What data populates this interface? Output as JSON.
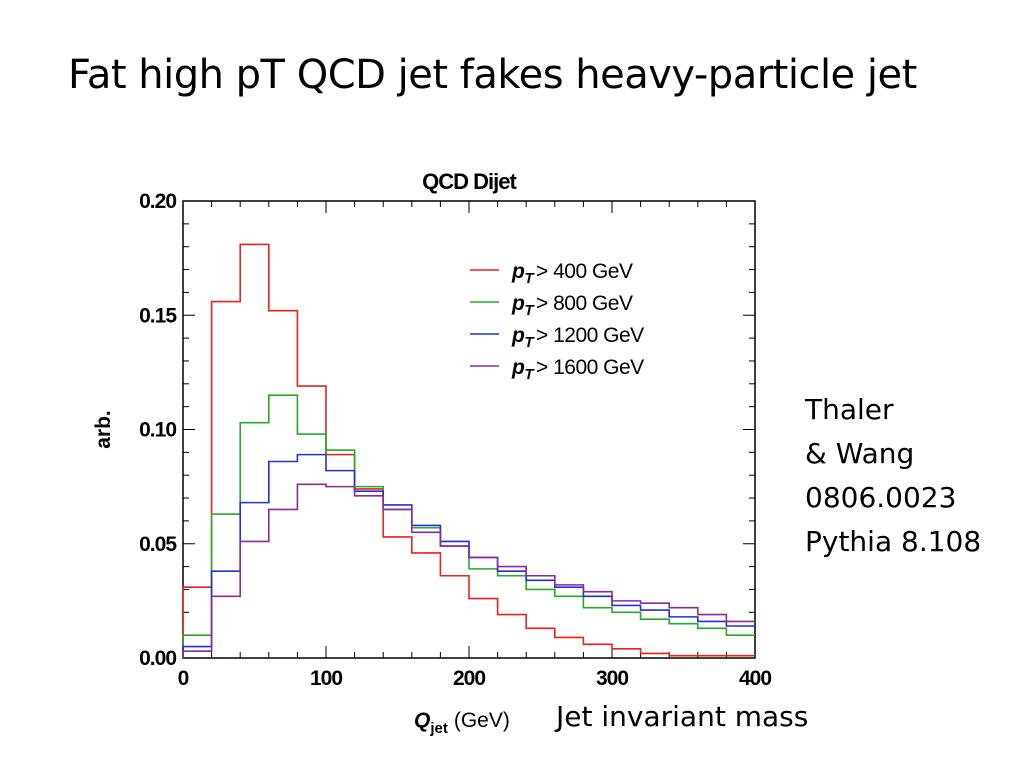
{
  "slide": {
    "title": "Fat high pT QCD jet fakes heavy-particle jet",
    "credits": [
      "Thaler",
      "& Wang",
      "0806.0023",
      "Pythia 8.108"
    ],
    "xcaption": "Jet invariant mass"
  },
  "chart_data": {
    "type": "line",
    "style": "step-histogram",
    "title": "QCD Dijet",
    "xlabel_main": "Q",
    "xlabel_sub": "jet",
    "xlabel_unit": "(GeV)",
    "ylabel": "arb.",
    "xlim": [
      0,
      400
    ],
    "ylim": [
      0,
      0.2
    ],
    "xticks": [
      0,
      100,
      200,
      300,
      400
    ],
    "xtick_labels": [
      "0",
      "100",
      "200",
      "300",
      "400"
    ],
    "yticks": [
      0,
      0.05,
      0.1,
      0.15,
      0.2
    ],
    "ytick_labels": [
      "0.00",
      "0.05",
      "0.10",
      "0.15",
      "0.20"
    ],
    "grid": false,
    "legend_position": "top-right",
    "bin_edges": [
      0,
      20,
      40,
      60,
      80,
      100,
      120,
      140,
      160,
      180,
      200,
      220,
      240,
      260,
      280,
      300,
      320,
      340,
      360,
      380,
      400
    ],
    "series": [
      {
        "legend_symbol": "p",
        "legend_sub": "T",
        "legend_text": "> 400 GeV",
        "color": "#e8231d",
        "values": [
          0.031,
          0.156,
          0.181,
          0.152,
          0.119,
          0.089,
          0.074,
          0.053,
          0.046,
          0.036,
          0.026,
          0.019,
          0.013,
          0.009,
          0.006,
          0.004,
          0.002,
          0.001,
          0.001,
          0.001
        ]
      },
      {
        "legend_symbol": "p",
        "legend_sub": "T",
        "legend_text": "> 800 GeV",
        "color": "#2aa82a",
        "values": [
          0.01,
          0.063,
          0.103,
          0.115,
          0.098,
          0.091,
          0.075,
          0.065,
          0.057,
          0.049,
          0.039,
          0.036,
          0.03,
          0.027,
          0.022,
          0.02,
          0.017,
          0.015,
          0.013,
          0.01
        ]
      },
      {
        "legend_symbol": "p",
        "legend_sub": "T",
        "legend_text": "> 1200 GeV",
        "color": "#2330d8",
        "values": [
          0.005,
          0.038,
          0.068,
          0.086,
          0.089,
          0.082,
          0.073,
          0.067,
          0.058,
          0.051,
          0.044,
          0.038,
          0.034,
          0.031,
          0.027,
          0.023,
          0.021,
          0.018,
          0.016,
          0.014
        ]
      },
      {
        "legend_symbol": "p",
        "legend_sub": "T",
        "legend_text": "> 1600 GeV",
        "color": "#8a2b96",
        "values": [
          0.003,
          0.027,
          0.051,
          0.065,
          0.076,
          0.075,
          0.071,
          0.065,
          0.055,
          0.049,
          0.044,
          0.04,
          0.036,
          0.032,
          0.029,
          0.025,
          0.024,
          0.022,
          0.019,
          0.016
        ]
      }
    ]
  }
}
